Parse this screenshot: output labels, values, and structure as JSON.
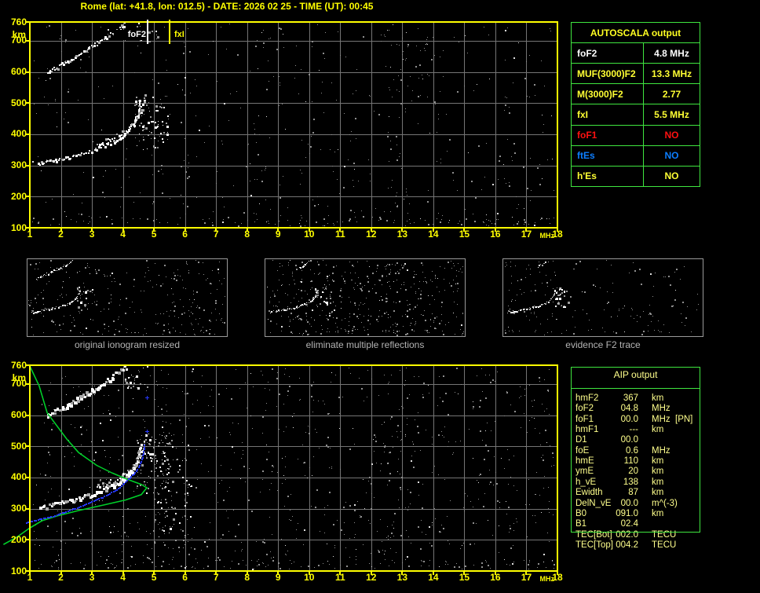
{
  "title": "Rome (lat: +41.8, lon: 012.5) - DATE: 2026 02 25 - TIME (UT): 00:45",
  "colors": {
    "accent_yellow": "#ffff00",
    "table_border_green": "#3fe63f",
    "profile_green": "#00cf2a",
    "restored_blue": "#2638ff",
    "foF1_red": "#ff1111",
    "ftEs_blue": "#0d7eff",
    "echo_white": "#ffffff",
    "noise_gray": "#8f8f8f",
    "grid_gray": "#757575"
  },
  "axes": {
    "x": {
      "unit": "MHz",
      "ticks": [
        1,
        2,
        3,
        4,
        5,
        6,
        7,
        8,
        9,
        10,
        11,
        12,
        13,
        14,
        15,
        16,
        17,
        18
      ]
    },
    "y": {
      "unit": "km",
      "ticks": [
        760,
        700,
        600,
        500,
        400,
        300,
        200,
        100
      ]
    }
  },
  "top_plot": {
    "markers": [
      {
        "label": "foF2",
        "mhz": 4.8,
        "color": "#ffffff"
      },
      {
        "label": "fxI",
        "mhz": 5.5,
        "color": "#ffff00"
      }
    ]
  },
  "panels": [
    {
      "caption": "original ionogram resized"
    },
    {
      "caption": "eliminate multiple reflections"
    },
    {
      "caption": "evidence F2 trace"
    }
  ],
  "autoscala_table": {
    "header": "AUTOSCALA output",
    "rows": [
      {
        "label": "foF2",
        "value": "4.8 MHz",
        "color": "#ffffff"
      },
      {
        "label": "MUF(3000)F2",
        "value": "13.3 MHz",
        "color": "#ffff33"
      },
      {
        "label": "M(3000)F2",
        "value": "2.77",
        "color": "#ffff33"
      },
      {
        "label": "fxI",
        "value": "5.5 MHz",
        "color": "#ffff33"
      },
      {
        "label": "foF1",
        "value": "NO",
        "color": "#ff1111"
      },
      {
        "label": "ftEs",
        "value": "NO",
        "color": "#0d7eff"
      },
      {
        "label": "h'Es",
        "value": "NO",
        "color": "#ffff33"
      }
    ]
  },
  "aip_table": {
    "header": "AIP output",
    "rows": [
      {
        "label": "hmF2",
        "value": "367",
        "unit": "km",
        "extra": ""
      },
      {
        "label": "foF2",
        "value": "04.8",
        "unit": "MHz",
        "extra": ""
      },
      {
        "label": "foF1",
        "value": "00.0",
        "unit": "MHz",
        "extra": "[PN]"
      },
      {
        "label": "hmF1",
        "value": "---",
        "unit": "km",
        "extra": ""
      },
      {
        "label": "D1",
        "value": "00.0",
        "unit": "",
        "extra": ""
      },
      {
        "label": "foE",
        "value": "0.6",
        "unit": "MHz",
        "extra": ""
      },
      {
        "label": "hmE",
        "value": "110",
        "unit": "km",
        "extra": ""
      },
      {
        "label": "ymE",
        "value": "20",
        "unit": "km",
        "extra": ""
      },
      {
        "label": "h_vE",
        "value": "138",
        "unit": "km",
        "extra": ""
      },
      {
        "label": "Ewidth",
        "value": "87",
        "unit": "km",
        "extra": ""
      },
      {
        "label": "DelN_vE",
        "value": "00.0",
        "unit": "m^(-3)",
        "extra": ""
      },
      {
        "label": "B0",
        "value": "091.0",
        "unit": "km",
        "extra": ""
      },
      {
        "label": "B1",
        "value": "02.4",
        "unit": "",
        "extra": ""
      },
      {
        "label": "TEC[Bot]",
        "value": "002.0",
        "unit": "TECU",
        "extra": ""
      },
      {
        "label": "TEC[Top]",
        "value": "004.2",
        "unit": "TECU",
        "extra": ""
      }
    ]
  },
  "chart_data": [
    {
      "type": "scatter",
      "title": "autoscaled ionogram",
      "xlabel": "MHz",
      "ylabel": "km",
      "xlim": [
        1,
        18
      ],
      "ylim": [
        100,
        760
      ],
      "grid": true,
      "legend_position": "none",
      "markers": [
        {
          "name": "foF2",
          "mhz": 4.8
        },
        {
          "name": "fxI",
          "mhz": 5.5
        }
      ],
      "traces": {
        "f2_echo": [
          [
            1.25,
            307
          ],
          [
            1.6,
            313
          ],
          [
            2.0,
            322
          ],
          [
            2.5,
            334
          ],
          [
            3.0,
            349
          ],
          [
            3.4,
            364
          ],
          [
            3.7,
            379
          ],
          [
            4.0,
            398
          ],
          [
            4.2,
            418
          ],
          [
            4.35,
            440
          ],
          [
            4.45,
            462
          ],
          [
            4.5,
            485
          ],
          [
            4.55,
            512
          ]
        ],
        "second_hop_echo": [
          [
            1.55,
            600
          ],
          [
            1.8,
            614
          ],
          [
            2.1,
            630
          ],
          [
            2.4,
            648
          ],
          [
            2.7,
            665
          ],
          [
            3.0,
            684
          ],
          [
            3.3,
            703
          ],
          [
            3.6,
            722
          ],
          [
            3.85,
            741
          ],
          [
            4.1,
            758
          ]
        ],
        "xmode_spread": {
          "mhz_range": [
            4.35,
            5.45
          ],
          "km_range": [
            350,
            525
          ]
        },
        "top_right_scatter": {
          "mhz_range": [
            4.1,
            5.1
          ],
          "km_range": [
            680,
            758
          ]
        }
      }
    },
    {
      "type": "scatter",
      "title": "ionogram with restored F2 trace and electron density profile",
      "xlabel": "MHz",
      "ylabel": "km",
      "xlim": [
        1,
        18
      ],
      "ylim": [
        100,
        760
      ],
      "grid": true,
      "legend_position": "none",
      "traces": {
        "f2_echo": [
          [
            1.3,
            303
          ],
          [
            1.6,
            312
          ],
          [
            2.0,
            322
          ],
          [
            2.5,
            334
          ],
          [
            3.0,
            349
          ],
          [
            3.4,
            364
          ],
          [
            3.7,
            379
          ],
          [
            4.0,
            398
          ],
          [
            4.2,
            418
          ],
          [
            4.35,
            440
          ],
          [
            4.45,
            462
          ],
          [
            4.5,
            485
          ],
          [
            4.55,
            512
          ]
        ],
        "second_hop_echo": [
          [
            1.55,
            600
          ],
          [
            1.8,
            614
          ],
          [
            2.1,
            630
          ],
          [
            2.4,
            648
          ],
          [
            2.7,
            665
          ],
          [
            3.0,
            684
          ],
          [
            3.3,
            703
          ],
          [
            3.6,
            722
          ],
          [
            3.85,
            741
          ],
          [
            4.1,
            758
          ]
        ],
        "xmode_spread": {
          "mhz_range": [
            4.4,
            5.6
          ],
          "km_range": [
            350,
            540
          ]
        },
        "low_spread": {
          "mhz_range": [
            5.0,
            6.2
          ],
          "km_range": [
            170,
            480
          ]
        },
        "top_right_scatter": {
          "mhz_range": [
            4.0,
            4.9
          ],
          "km_range": [
            690,
            760
          ]
        },
        "restored_trace_blue": [
          [
            0.87,
            255
          ],
          [
            1.0,
            261
          ],
          [
            1.73,
            277
          ],
          [
            2.57,
            307
          ],
          [
            3.33,
            338
          ],
          [
            3.84,
            366
          ],
          [
            4.16,
            396
          ],
          [
            4.42,
            422
          ],
          [
            4.54,
            447
          ],
          [
            4.65,
            478
          ],
          [
            4.67,
            506
          ]
        ],
        "restored_points_blue": [
          [
            4.76,
            549
          ],
          [
            4.76,
            656
          ]
        ],
        "density_profile_green": [
          [
            1.0,
            757
          ],
          [
            1.3,
            694
          ],
          [
            1.56,
            607
          ],
          [
            2.19,
            523
          ],
          [
            2.57,
            480
          ],
          [
            3.15,
            439
          ],
          [
            3.66,
            414
          ],
          [
            4.09,
            396
          ],
          [
            4.59,
            378
          ],
          [
            4.77,
            367
          ],
          [
            4.59,
            345
          ],
          [
            4.09,
            328
          ],
          [
            3.4,
            312
          ],
          [
            2.57,
            294
          ],
          [
            1.89,
            277
          ],
          [
            1.39,
            261
          ],
          [
            1.0,
            238
          ],
          [
            0.6,
            210
          ],
          [
            0.15,
            185
          ]
        ]
      }
    }
  ]
}
